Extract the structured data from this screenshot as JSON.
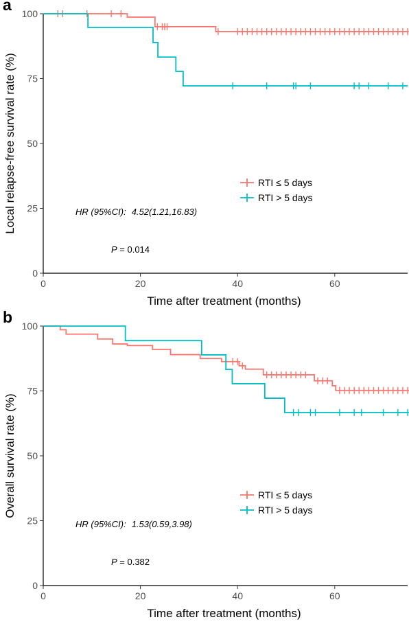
{
  "colors": {
    "group1": "#F8766D",
    "group2": "#00BFC4",
    "axis": "#000000",
    "tick_text": "#4d4d4d"
  },
  "chart_data": [
    {
      "panel": "a",
      "type": "line",
      "step": true,
      "xlabel": "Time after treatment (months)",
      "ylabel": "Local relapse-free survival rate (%)",
      "xlim": [
        0,
        75
      ],
      "ylim": [
        0,
        100
      ],
      "xticks": [
        0,
        20,
        40,
        60
      ],
      "yticks": [
        0,
        25,
        50,
        75,
        100
      ],
      "grid": false,
      "legend_position": "right-middle",
      "annotations": {
        "hr_label": "HR (95%CI):",
        "hr_value": "4.52(1.21,16.83)",
        "p_label": "P",
        "p_value": " = 0.014"
      },
      "series": [
        {
          "name": "RTI ≤ 5 days",
          "color": "#F8766D",
          "x": [
            0,
            17.3,
            23.0,
            35.5,
            75
          ],
          "y": [
            100,
            98.7,
            95.0,
            93.1,
            93.1
          ],
          "censored_x": [
            3,
            4,
            9,
            14,
            16,
            23.5,
            24.5,
            25,
            25.5,
            36,
            40,
            41,
            42,
            43,
            44,
            45,
            46,
            47,
            48,
            49,
            50,
            51,
            52,
            53,
            54,
            55,
            56,
            57,
            58,
            59,
            60,
            61,
            62,
            63,
            64,
            65,
            66,
            67,
            68,
            69,
            70,
            71,
            72,
            73,
            74,
            75
          ]
        },
        {
          "name": "RTI > 5 days",
          "color": "#00BFC4",
          "x": [
            0,
            9.2,
            22.6,
            23.6,
            27.3,
            28.8,
            75
          ],
          "y": [
            100,
            94.7,
            88.9,
            83.3,
            77.8,
            72.2,
            72.2
          ],
          "censored_x": [
            39,
            46,
            51.5,
            52,
            55,
            64,
            65,
            67,
            71,
            74
          ]
        }
      ]
    },
    {
      "panel": "b",
      "type": "line",
      "step": true,
      "xlabel": "Time after treatment (months)",
      "ylabel": "Overall survival rate (%)",
      "xlim": [
        0,
        75
      ],
      "ylim": [
        0,
        100
      ],
      "xticks": [
        0,
        20,
        40,
        60
      ],
      "yticks": [
        0,
        25,
        50,
        75,
        100
      ],
      "grid": false,
      "legend_position": "right-middle",
      "annotations": {
        "hr_label": "HR (95%CI):",
        "hr_value": "1.53(0.59,3.98)",
        "p_label": "P",
        "p_value": " = 0.382"
      },
      "series": [
        {
          "name": "RTI ≤ 5 days",
          "color": "#F8766D",
          "x": [
            0,
            3.5,
            4.7,
            11.2,
            14.3,
            17.3,
            22.5,
            26.2,
            32.3,
            36.7,
            40.3,
            41.6,
            45.3,
            55.8,
            59.5,
            60.2,
            75
          ],
          "y": [
            100,
            98.6,
            96.9,
            95.0,
            93.1,
            92.5,
            91.0,
            89.0,
            87.5,
            86.3,
            84.7,
            83.4,
            81.2,
            78.9,
            77.0,
            75.2,
            75.2
          ],
          "censored_x": [
            39,
            40,
            41,
            46,
            47,
            48,
            49,
            50,
            51,
            52,
            53,
            54,
            56.5,
            57.5,
            58.5,
            61,
            62,
            63,
            64,
            65,
            66,
            67,
            68,
            69,
            70,
            71,
            72,
            73,
            74,
            75
          ]
        },
        {
          "name": "RTI > 5 days",
          "color": "#00BFC4",
          "x": [
            0,
            16.9,
            32.6,
            37.6,
            38.9,
            45.6,
            49.7,
            75
          ],
          "y": [
            100,
            94.4,
            88.9,
            83.3,
            77.8,
            72.2,
            66.7,
            66.7
          ],
          "censored_x": [
            51.5,
            52.5,
            55,
            56,
            61,
            64,
            65.5,
            70,
            73,
            75
          ]
        }
      ]
    }
  ]
}
